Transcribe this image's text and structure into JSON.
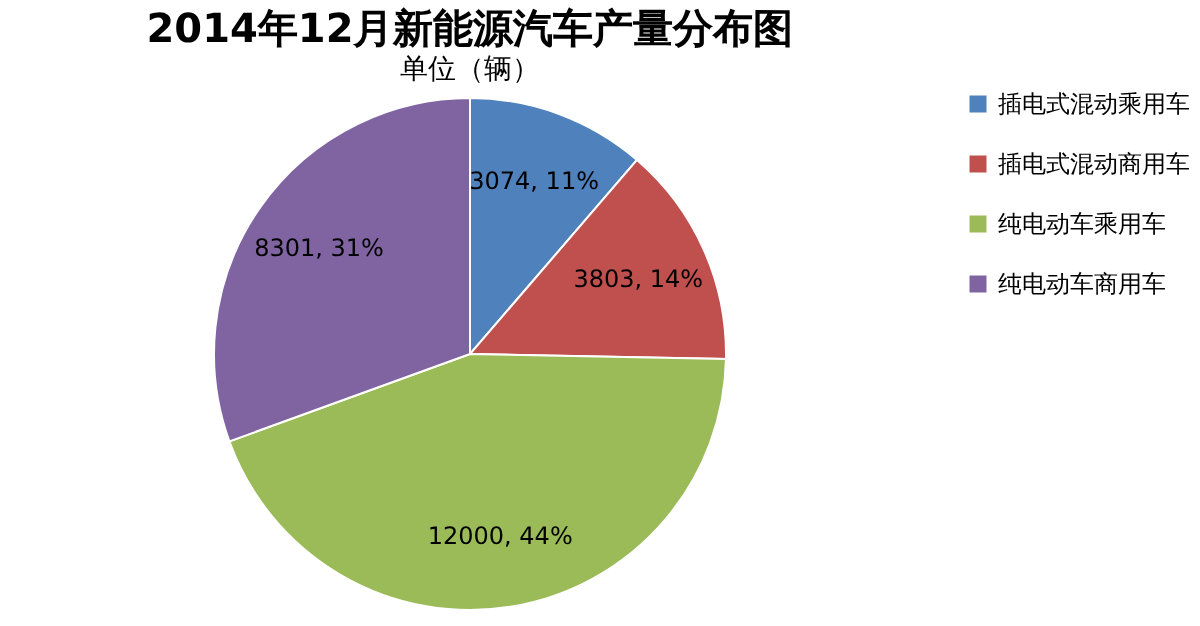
{
  "chart_data": {
    "type": "pie",
    "title": "2014年12月新能源汽车产量分布图",
    "subtitle": "单位（辆）",
    "categories": [
      "插电式混动乘用车",
      "插电式混动商用车",
      "纯电动车乘用车",
      "纯电动车商用车"
    ],
    "values": [
      3074,
      3803,
      12000,
      8301
    ],
    "colors": [
      "#4f81bd",
      "#c0504d",
      "#9bbb59",
      "#8064a2"
    ],
    "value_labels": [
      "3074, 11%",
      "3803, 14%",
      "12000, 44%",
      "8301, 31%"
    ],
    "legend": "right"
  }
}
